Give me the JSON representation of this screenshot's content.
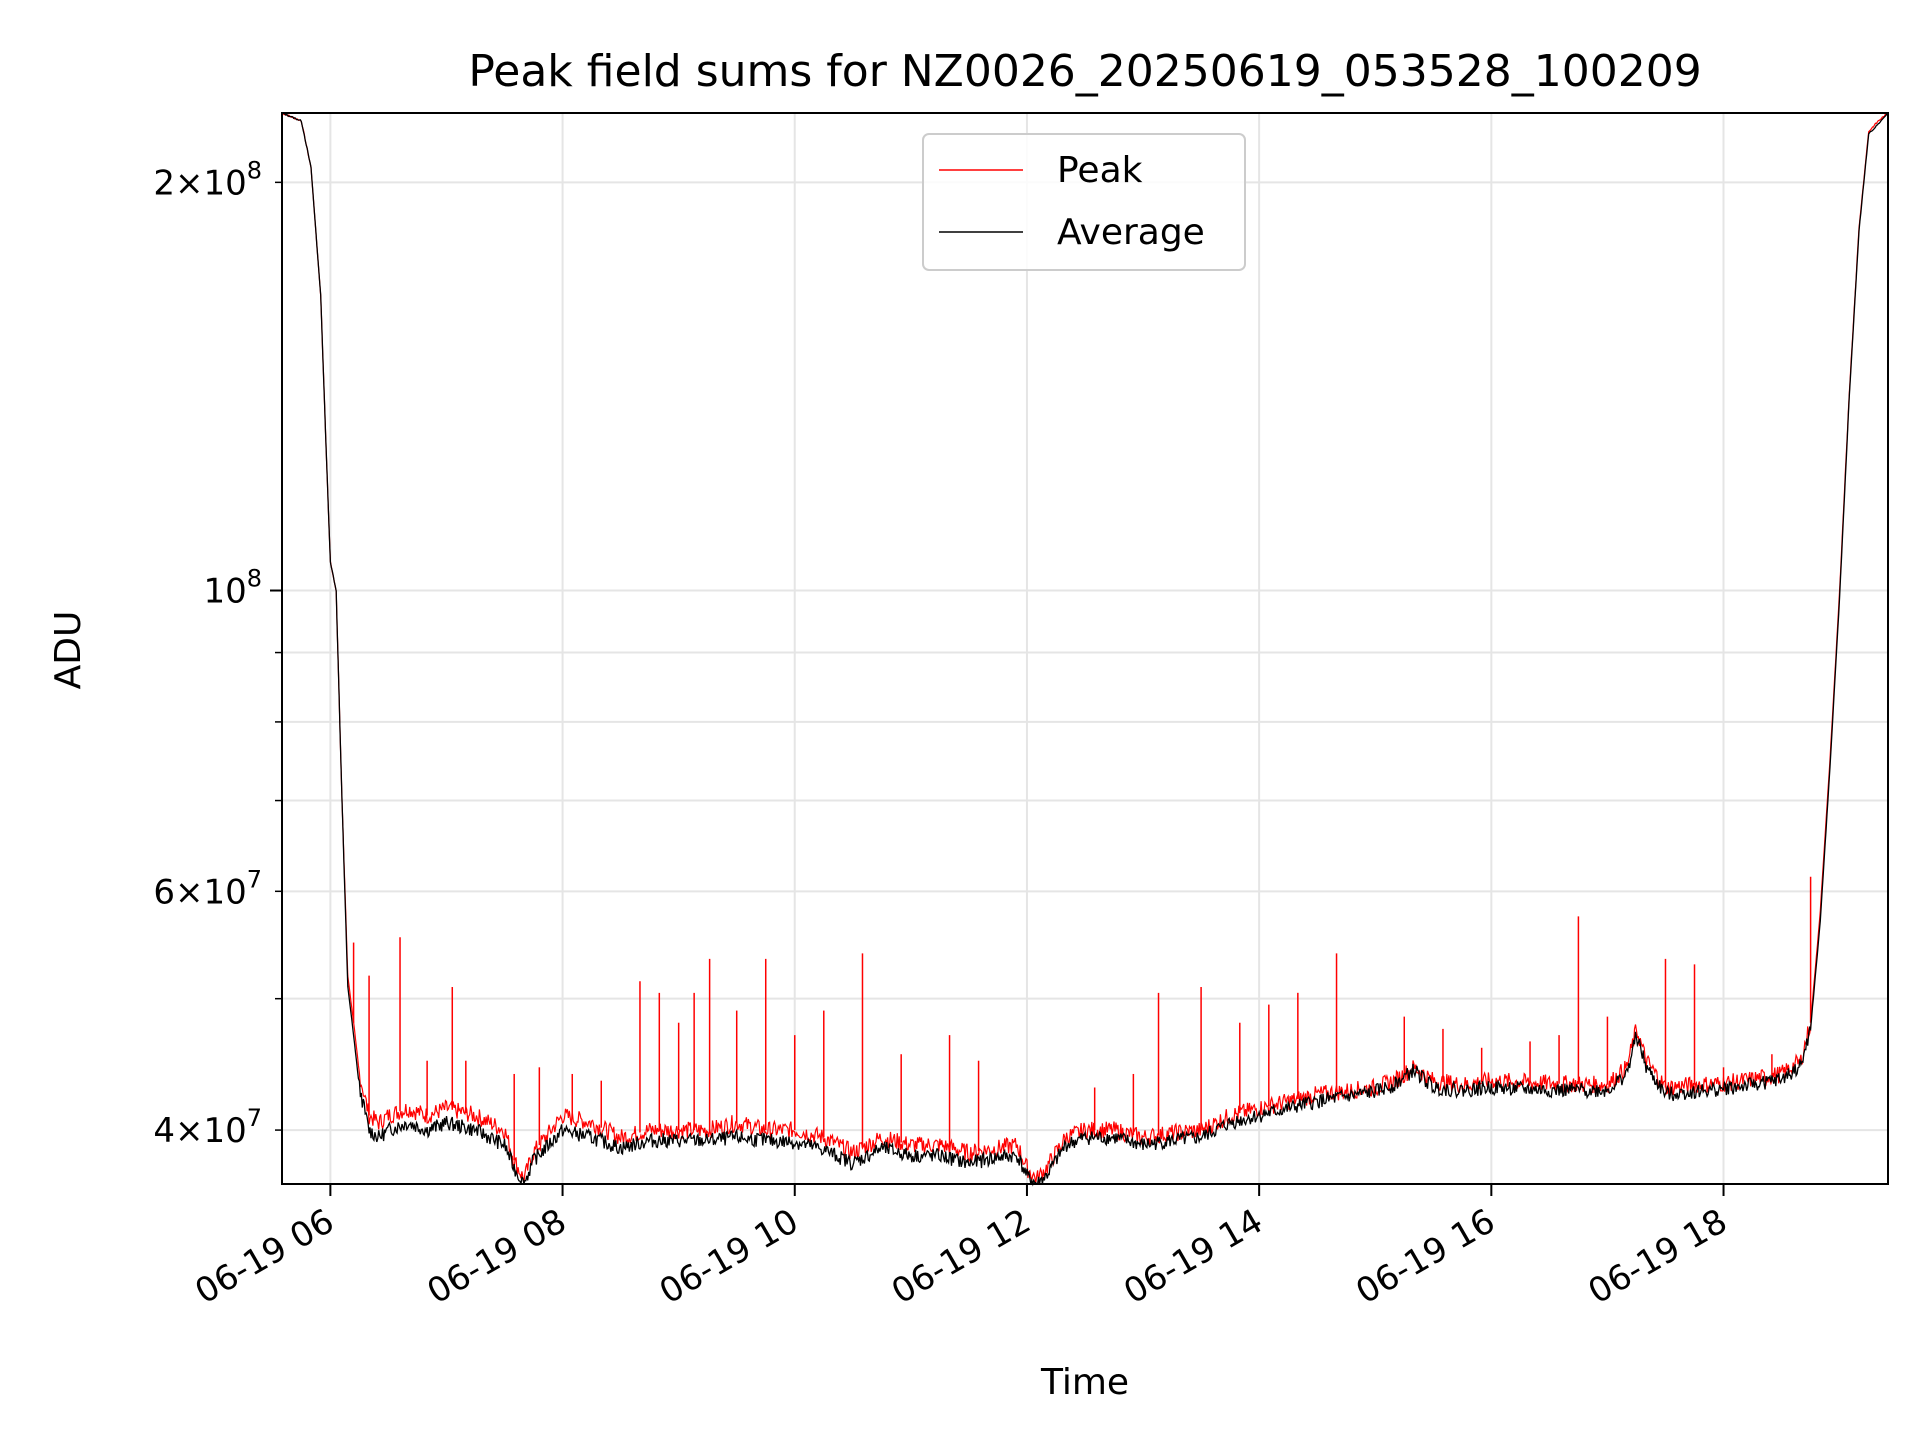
{
  "chart_data": {
    "type": "line",
    "title": "Peak field sums for NZ0026_20250619_053528_100209",
    "xlabel": "Time",
    "ylabel": "ADU",
    "x_type": "datetime",
    "x_tick_labels": [
      "06-19 06",
      "06-19 08",
      "06-19 10",
      "06-19 12",
      "06-19 14",
      "06-19 16",
      "06-19 18"
    ],
    "x_ticks": [
      "2025-06-19T06:00",
      "2025-06-19T08:00",
      "2025-06-19T10:00",
      "2025-06-19T12:00",
      "2025-06-19T14:00",
      "2025-06-19T16:00",
      "2025-06-19T18:00"
    ],
    "xlim": [
      "2025-06-19T05:35",
      "2025-06-19T19:25"
    ],
    "y_scale": "log",
    "ylim": [
      36500000,
      225000000
    ],
    "y_major_ticks": [
      100000000
    ],
    "y_major_labels": [
      {
        "base": "10",
        "exp": "8"
      }
    ],
    "y_minor_ticks": [
      40000000,
      50000000,
      60000000,
      70000000,
      80000000,
      90000000,
      200000000
    ],
    "y_minor_labels": [
      {
        "value": 40000000,
        "mant": "4",
        "base": "10",
        "exp": "7"
      },
      {
        "value": 60000000,
        "mant": "6",
        "base": "10",
        "exp": "7"
      },
      {
        "value": 200000000,
        "mant": "2",
        "base": "10",
        "exp": "8"
      }
    ],
    "grid": true,
    "legend_position": "top-center",
    "series": [
      {
        "name": "Peak",
        "color": "#ff0000",
        "x": [
          "05:35",
          "05:45",
          "05:50",
          "05:55",
          "05:58",
          "06:00",
          "06:03",
          "06:06",
          "06:09",
          "06:12",
          "06:15",
          "06:20",
          "06:25",
          "06:30",
          "06:40",
          "06:50",
          "07:00",
          "07:15",
          "07:30",
          "07:35",
          "07:40",
          "07:45",
          "08:00",
          "08:15",
          "08:30",
          "08:45",
          "09:00",
          "09:15",
          "09:30",
          "09:45",
          "10:00",
          "10:15",
          "10:30",
          "10:45",
          "11:00",
          "11:15",
          "11:30",
          "11:45",
          "11:55",
          "12:00",
          "12:05",
          "12:10",
          "12:20",
          "12:30",
          "12:45",
          "13:00",
          "13:15",
          "13:30",
          "13:45",
          "14:00",
          "14:30",
          "15:00",
          "15:10",
          "15:20",
          "15:30",
          "15:45",
          "16:00",
          "16:30",
          "17:00",
          "17:10",
          "17:15",
          "17:20",
          "17:30",
          "17:45",
          "18:00",
          "18:15",
          "18:30",
          "18:40",
          "18:45",
          "18:50",
          "18:55",
          "19:00",
          "19:05",
          "19:10",
          "19:15",
          "19:20",
          "19:25"
        ],
        "y": [
          225000000,
          222000000,
          205000000,
          165000000,
          125000000,
          105000000,
          100000000,
          70000000,
          52000000,
          48000000,
          44000000,
          41000000,
          40500000,
          41000000,
          41500000,
          41000000,
          41500000,
          41000000,
          40000000,
          38000000,
          36800000,
          38500000,
          41000000,
          40500000,
          39500000,
          40000000,
          40000000,
          40000000,
          40500000,
          40000000,
          40000000,
          39500000,
          38500000,
          39500000,
          39000000,
          39000000,
          38500000,
          38800000,
          39000000,
          37500000,
          36800000,
          37500000,
          39500000,
          40000000,
          40000000,
          39500000,
          39800000,
          40000000,
          41000000,
          41500000,
          42500000,
          43000000,
          43500000,
          44500000,
          43500000,
          43200000,
          43500000,
          43300000,
          43200000,
          44500000,
          47500000,
          45000000,
          43000000,
          43200000,
          43300000,
          43600000,
          44000000,
          45000000,
          48000000,
          58000000,
          75000000,
          100000000,
          140000000,
          185000000,
          218000000,
          222000000,
          225000000
        ],
        "spikes": [
          [
            "06:12",
            55000000
          ],
          [
            "06:20",
            52000000
          ],
          [
            "06:36",
            55500000
          ],
          [
            "06:50",
            45000000
          ],
          [
            "07:03",
            51000000
          ],
          [
            "07:10",
            45000000
          ],
          [
            "07:35",
            44000000
          ],
          [
            "07:48",
            44500000
          ],
          [
            "08:05",
            44000000
          ],
          [
            "08:20",
            43500000
          ],
          [
            "08:40",
            51500000
          ],
          [
            "08:50",
            50500000
          ],
          [
            "09:00",
            48000000
          ],
          [
            "09:08",
            50500000
          ],
          [
            "09:16",
            53500000
          ],
          [
            "09:30",
            49000000
          ],
          [
            "09:45",
            53500000
          ],
          [
            "10:00",
            47000000
          ],
          [
            "10:15",
            49000000
          ],
          [
            "10:35",
            54000000
          ],
          [
            "10:55",
            45500000
          ],
          [
            "11:20",
            47000000
          ],
          [
            "11:35",
            45000000
          ],
          [
            "12:35",
            43000000
          ],
          [
            "12:55",
            44000000
          ],
          [
            "13:08",
            50500000
          ],
          [
            "13:30",
            51000000
          ],
          [
            "13:50",
            48000000
          ],
          [
            "14:05",
            49500000
          ],
          [
            "14:20",
            50500000
          ],
          [
            "14:40",
            54000000
          ],
          [
            "15:15",
            48500000
          ],
          [
            "15:35",
            47500000
          ],
          [
            "15:55",
            46000000
          ],
          [
            "16:20",
            46500000
          ],
          [
            "16:35",
            47000000
          ],
          [
            "16:45",
            57500000
          ],
          [
            "17:00",
            48500000
          ],
          [
            "17:30",
            53500000
          ],
          [
            "17:45",
            53000000
          ],
          [
            "18:00",
            44500000
          ],
          [
            "18:25",
            45500000
          ],
          [
            "18:45",
            61500000
          ]
        ]
      },
      {
        "name": "Average",
        "color": "#000000",
        "x": [
          "05:35",
          "05:45",
          "05:50",
          "05:55",
          "05:58",
          "06:00",
          "06:03",
          "06:06",
          "06:09",
          "06:12",
          "06:15",
          "06:20",
          "06:25",
          "06:30",
          "06:40",
          "06:50",
          "07:00",
          "07:15",
          "07:30",
          "07:35",
          "07:40",
          "07:45",
          "08:00",
          "08:15",
          "08:30",
          "08:45",
          "09:00",
          "09:15",
          "09:30",
          "09:45",
          "10:00",
          "10:15",
          "10:30",
          "10:45",
          "11:00",
          "11:15",
          "11:30",
          "11:45",
          "11:55",
          "12:00",
          "12:05",
          "12:10",
          "12:20",
          "12:30",
          "12:45",
          "13:00",
          "13:15",
          "13:30",
          "13:45",
          "14:00",
          "14:30",
          "15:00",
          "15:10",
          "15:20",
          "15:30",
          "15:45",
          "16:00",
          "16:30",
          "17:00",
          "17:10",
          "17:15",
          "17:20",
          "17:30",
          "17:45",
          "18:00",
          "18:15",
          "18:30",
          "18:40",
          "18:45",
          "18:50",
          "18:55",
          "19:00",
          "19:05",
          "19:10",
          "19:15",
          "19:20",
          "19:25"
        ],
        "y": [
          225000000,
          222000000,
          205000000,
          165000000,
          125000000,
          105000000,
          100000000,
          70000000,
          51000000,
          47000000,
          43000000,
          40000000,
          39500000,
          40000000,
          40500000,
          40000000,
          40500000,
          40000000,
          39000000,
          37500000,
          36500000,
          38000000,
          40000000,
          39500000,
          38800000,
          39300000,
          39300000,
          39300000,
          39500000,
          39300000,
          39200000,
          38700000,
          37800000,
          38800000,
          38300000,
          38300000,
          37800000,
          38200000,
          38300000,
          37000000,
          36500000,
          37000000,
          39000000,
          39500000,
          39500000,
          39000000,
          39300000,
          39500000,
          40500000,
          41000000,
          42000000,
          42700000,
          43200000,
          44300000,
          43000000,
          42800000,
          43000000,
          42800000,
          42800000,
          44000000,
          47000000,
          44500000,
          42500000,
          42700000,
          42900000,
          43200000,
          43600000,
          44600000,
          47500000,
          57000000,
          74000000,
          99000000,
          139000000,
          184000000,
          217000000,
          221000000,
          225000000
        ]
      }
    ]
  }
}
